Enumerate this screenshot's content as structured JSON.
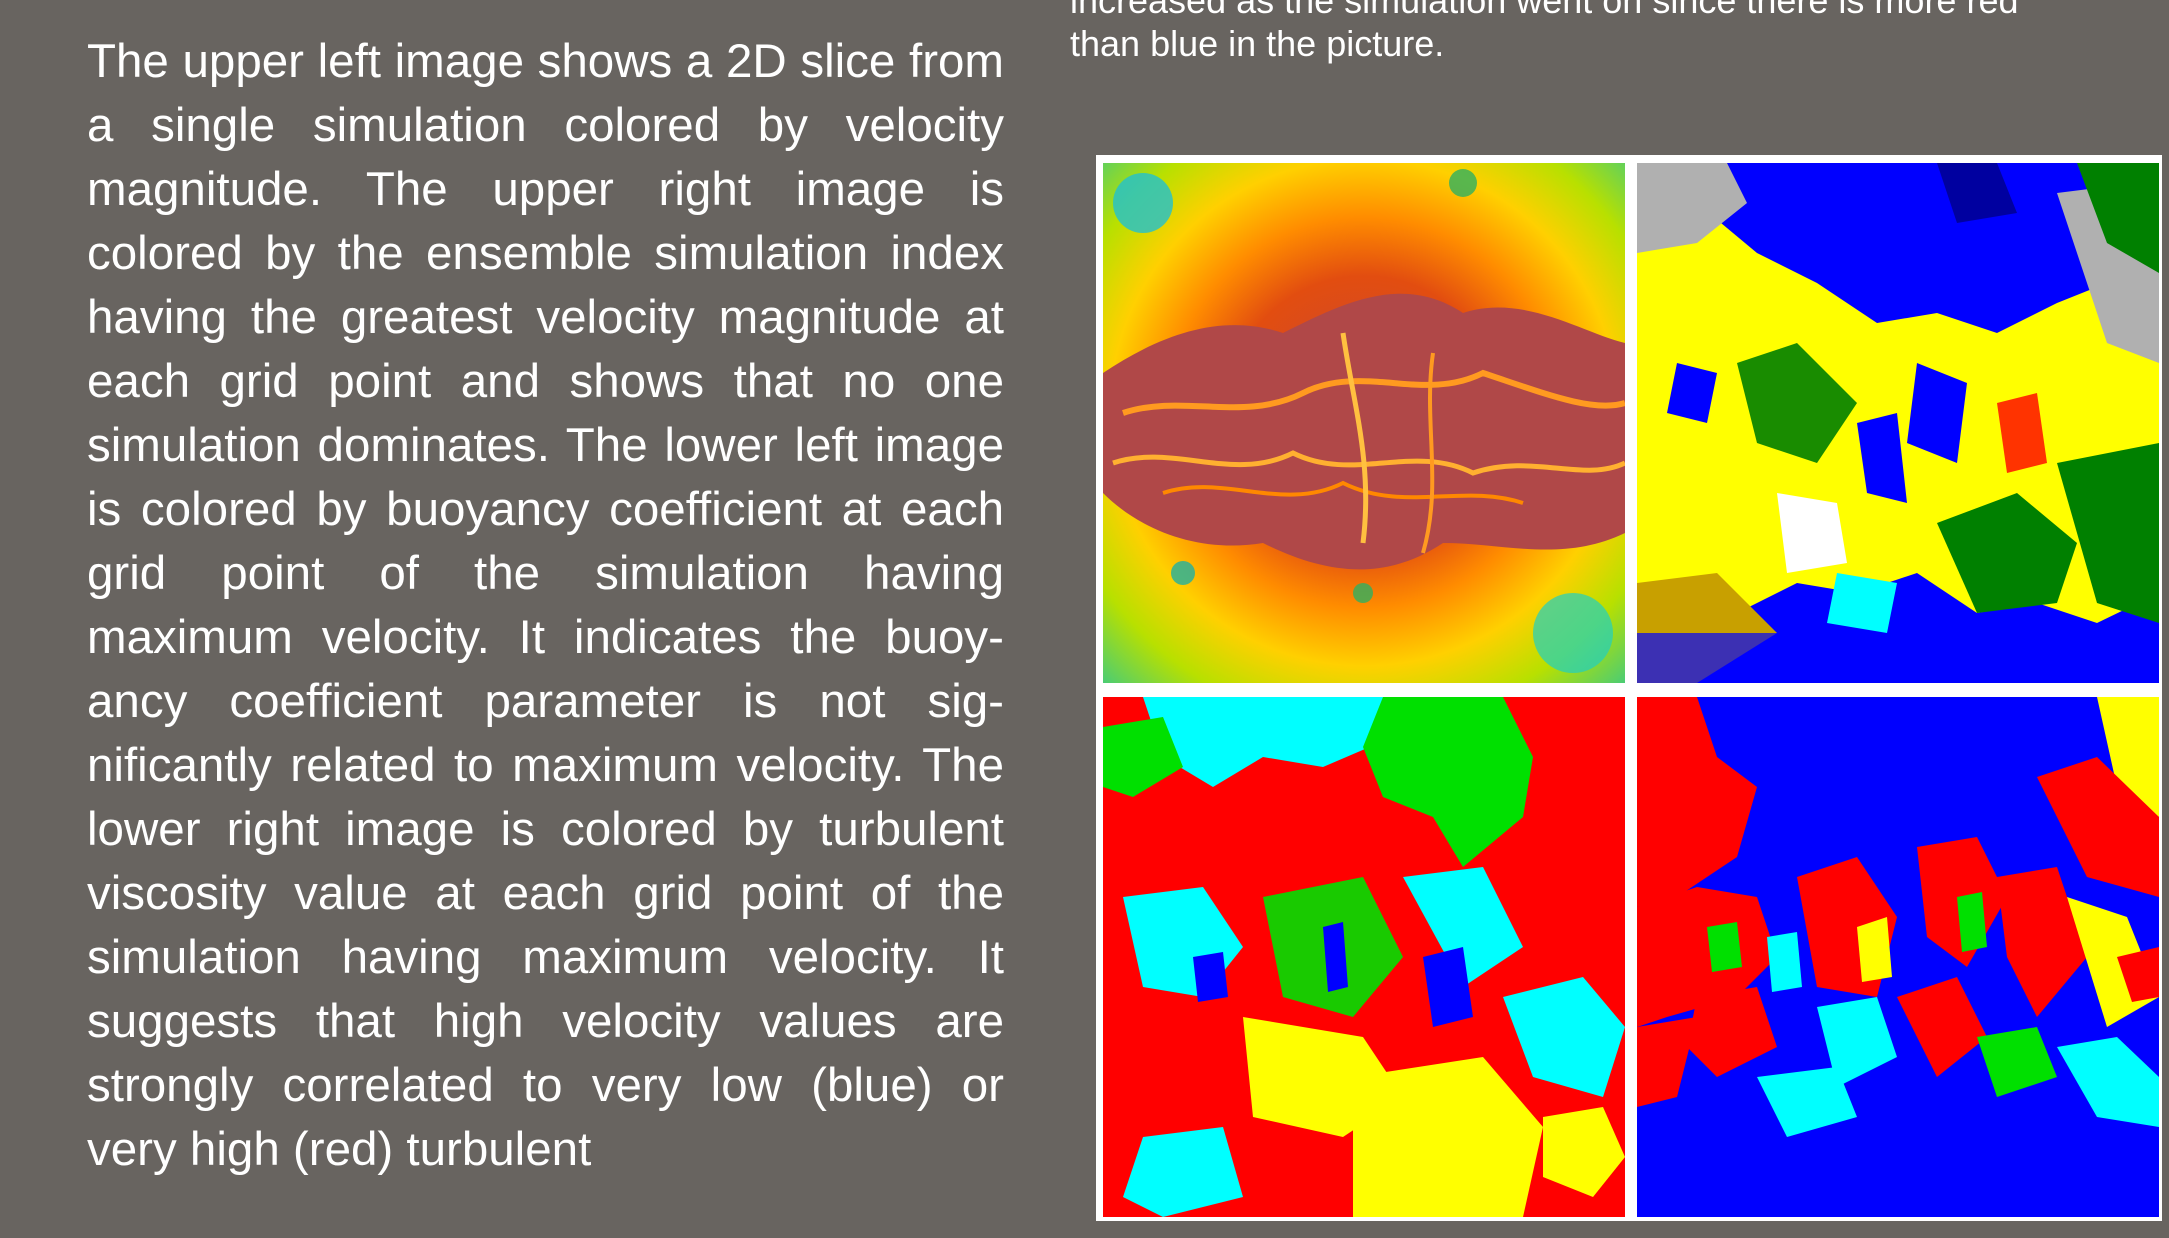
{
  "left_paragraph": {
    "text": "The upper left image shows a 2D slice from a single simulation colored by ve­locity magnitude. The upper right image is colored by the ensemble simulation index having the greatest velocity magnitude at each grid point and shows that no one simulation dominates. The lower left image is col­ored by buoyancy coefficient at each grid point of the simulation having maximum velocity. It indicates the buoy­ancy coefficient parameter is not sig­nificantly related to maximum velocity. The lower right image is colored by tur­bulent viscosity value at each grid point of the simulation having maximum ve­locity. It suggests that high velocity values are strongly correlated to very low (blue) or very high (red) turbulent"
  },
  "right_text": {
    "line1": "increased as the simulation went on since there is more red",
    "line2": "than blue in the picture."
  },
  "figure": {
    "panels": [
      {
        "name": "velocity-magnitude",
        "position": "upper-left"
      },
      {
        "name": "ensemble-simulation-index",
        "position": "upper-right"
      },
      {
        "name": "buoyancy-coefficient",
        "position": "lower-left"
      },
      {
        "name": "turbulent-viscosity",
        "position": "lower-right"
      }
    ],
    "colors": {
      "background": "#686460",
      "frame": "#ffffff",
      "red": "#ff0000",
      "blue": "#0000ff",
      "yellow": "#ffff00",
      "green": "#00e000",
      "cyan": "#00ffff",
      "dark_red": "#a83c3c",
      "orange": "#ff9900"
    }
  }
}
